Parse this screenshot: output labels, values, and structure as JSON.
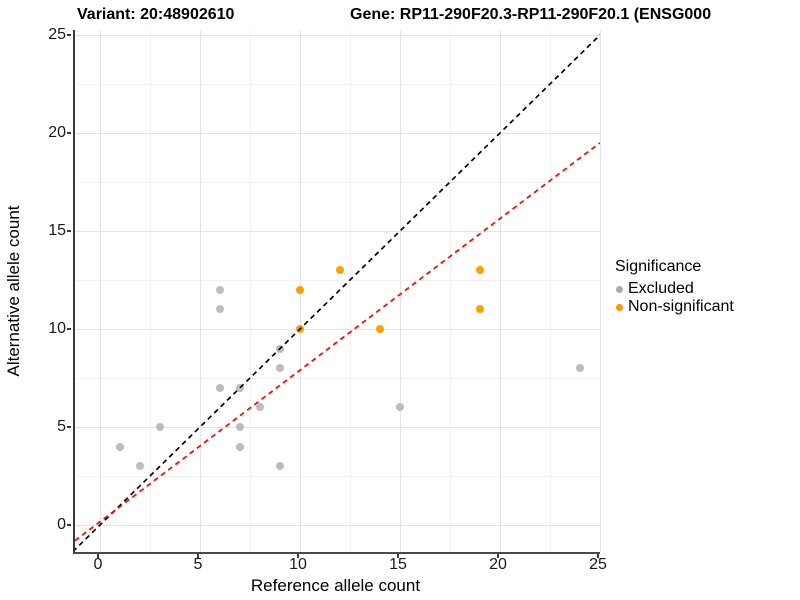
{
  "chart_data": {
    "type": "scatter",
    "titles": {
      "variant": "Variant: 20:48902610",
      "gene": "Gene: RP11-290F20.3-RP11-290F20.1 (ENSG000"
    },
    "xlabel": "Reference allele count",
    "ylabel": "Alternative allele count",
    "x_ticks": [
      0,
      5,
      10,
      15,
      20,
      25
    ],
    "y_ticks": [
      0,
      5,
      10,
      15,
      20,
      25
    ],
    "x_minor_ticks": [
      2.5,
      7.5,
      12.5,
      17.5,
      22.5
    ],
    "y_minor_ticks": [
      2.5,
      7.5,
      12.5,
      17.5,
      22.5
    ],
    "xlim": [
      -1.25,
      25
    ],
    "ylim": [
      -1.38,
      25.26
    ],
    "grid": true,
    "series": [
      {
        "name": "Excluded",
        "color": "#bcbcbc",
        "points": [
          [
            1,
            4
          ],
          [
            2,
            3
          ],
          [
            3,
            5
          ],
          [
            6,
            7
          ],
          [
            6,
            11
          ],
          [
            6,
            12
          ],
          [
            7,
            4
          ],
          [
            7,
            5
          ],
          [
            7,
            7
          ],
          [
            8,
            6
          ],
          [
            9,
            3
          ],
          [
            9,
            8
          ],
          [
            9,
            9
          ],
          [
            15,
            6
          ],
          [
            24,
            8
          ]
        ]
      },
      {
        "name": "Non-significant",
        "color": "#ffa000",
        "points": [
          [
            10,
            10
          ],
          [
            10,
            12
          ],
          [
            12,
            13
          ],
          [
            14,
            10
          ],
          [
            19,
            11
          ],
          [
            19,
            13
          ]
        ]
      }
    ],
    "lines": [
      {
        "name": "identity-line",
        "color": "#000000",
        "style": "dashed",
        "points": [
          [
            -2,
            -2
          ],
          [
            26.5,
            26.5
          ]
        ]
      },
      {
        "name": "regression-line",
        "color": "#ff0000",
        "style": "dashed",
        "points": [
          [
            -1.25,
            -0.8
          ],
          [
            25,
            19.5
          ]
        ]
      }
    ],
    "legend": {
      "title": "Significance",
      "position": "right",
      "items": [
        {
          "label": "Excluded",
          "color": "#ababab"
        },
        {
          "label": "Non-significant",
          "color": "#ff9700"
        }
      ]
    }
  }
}
